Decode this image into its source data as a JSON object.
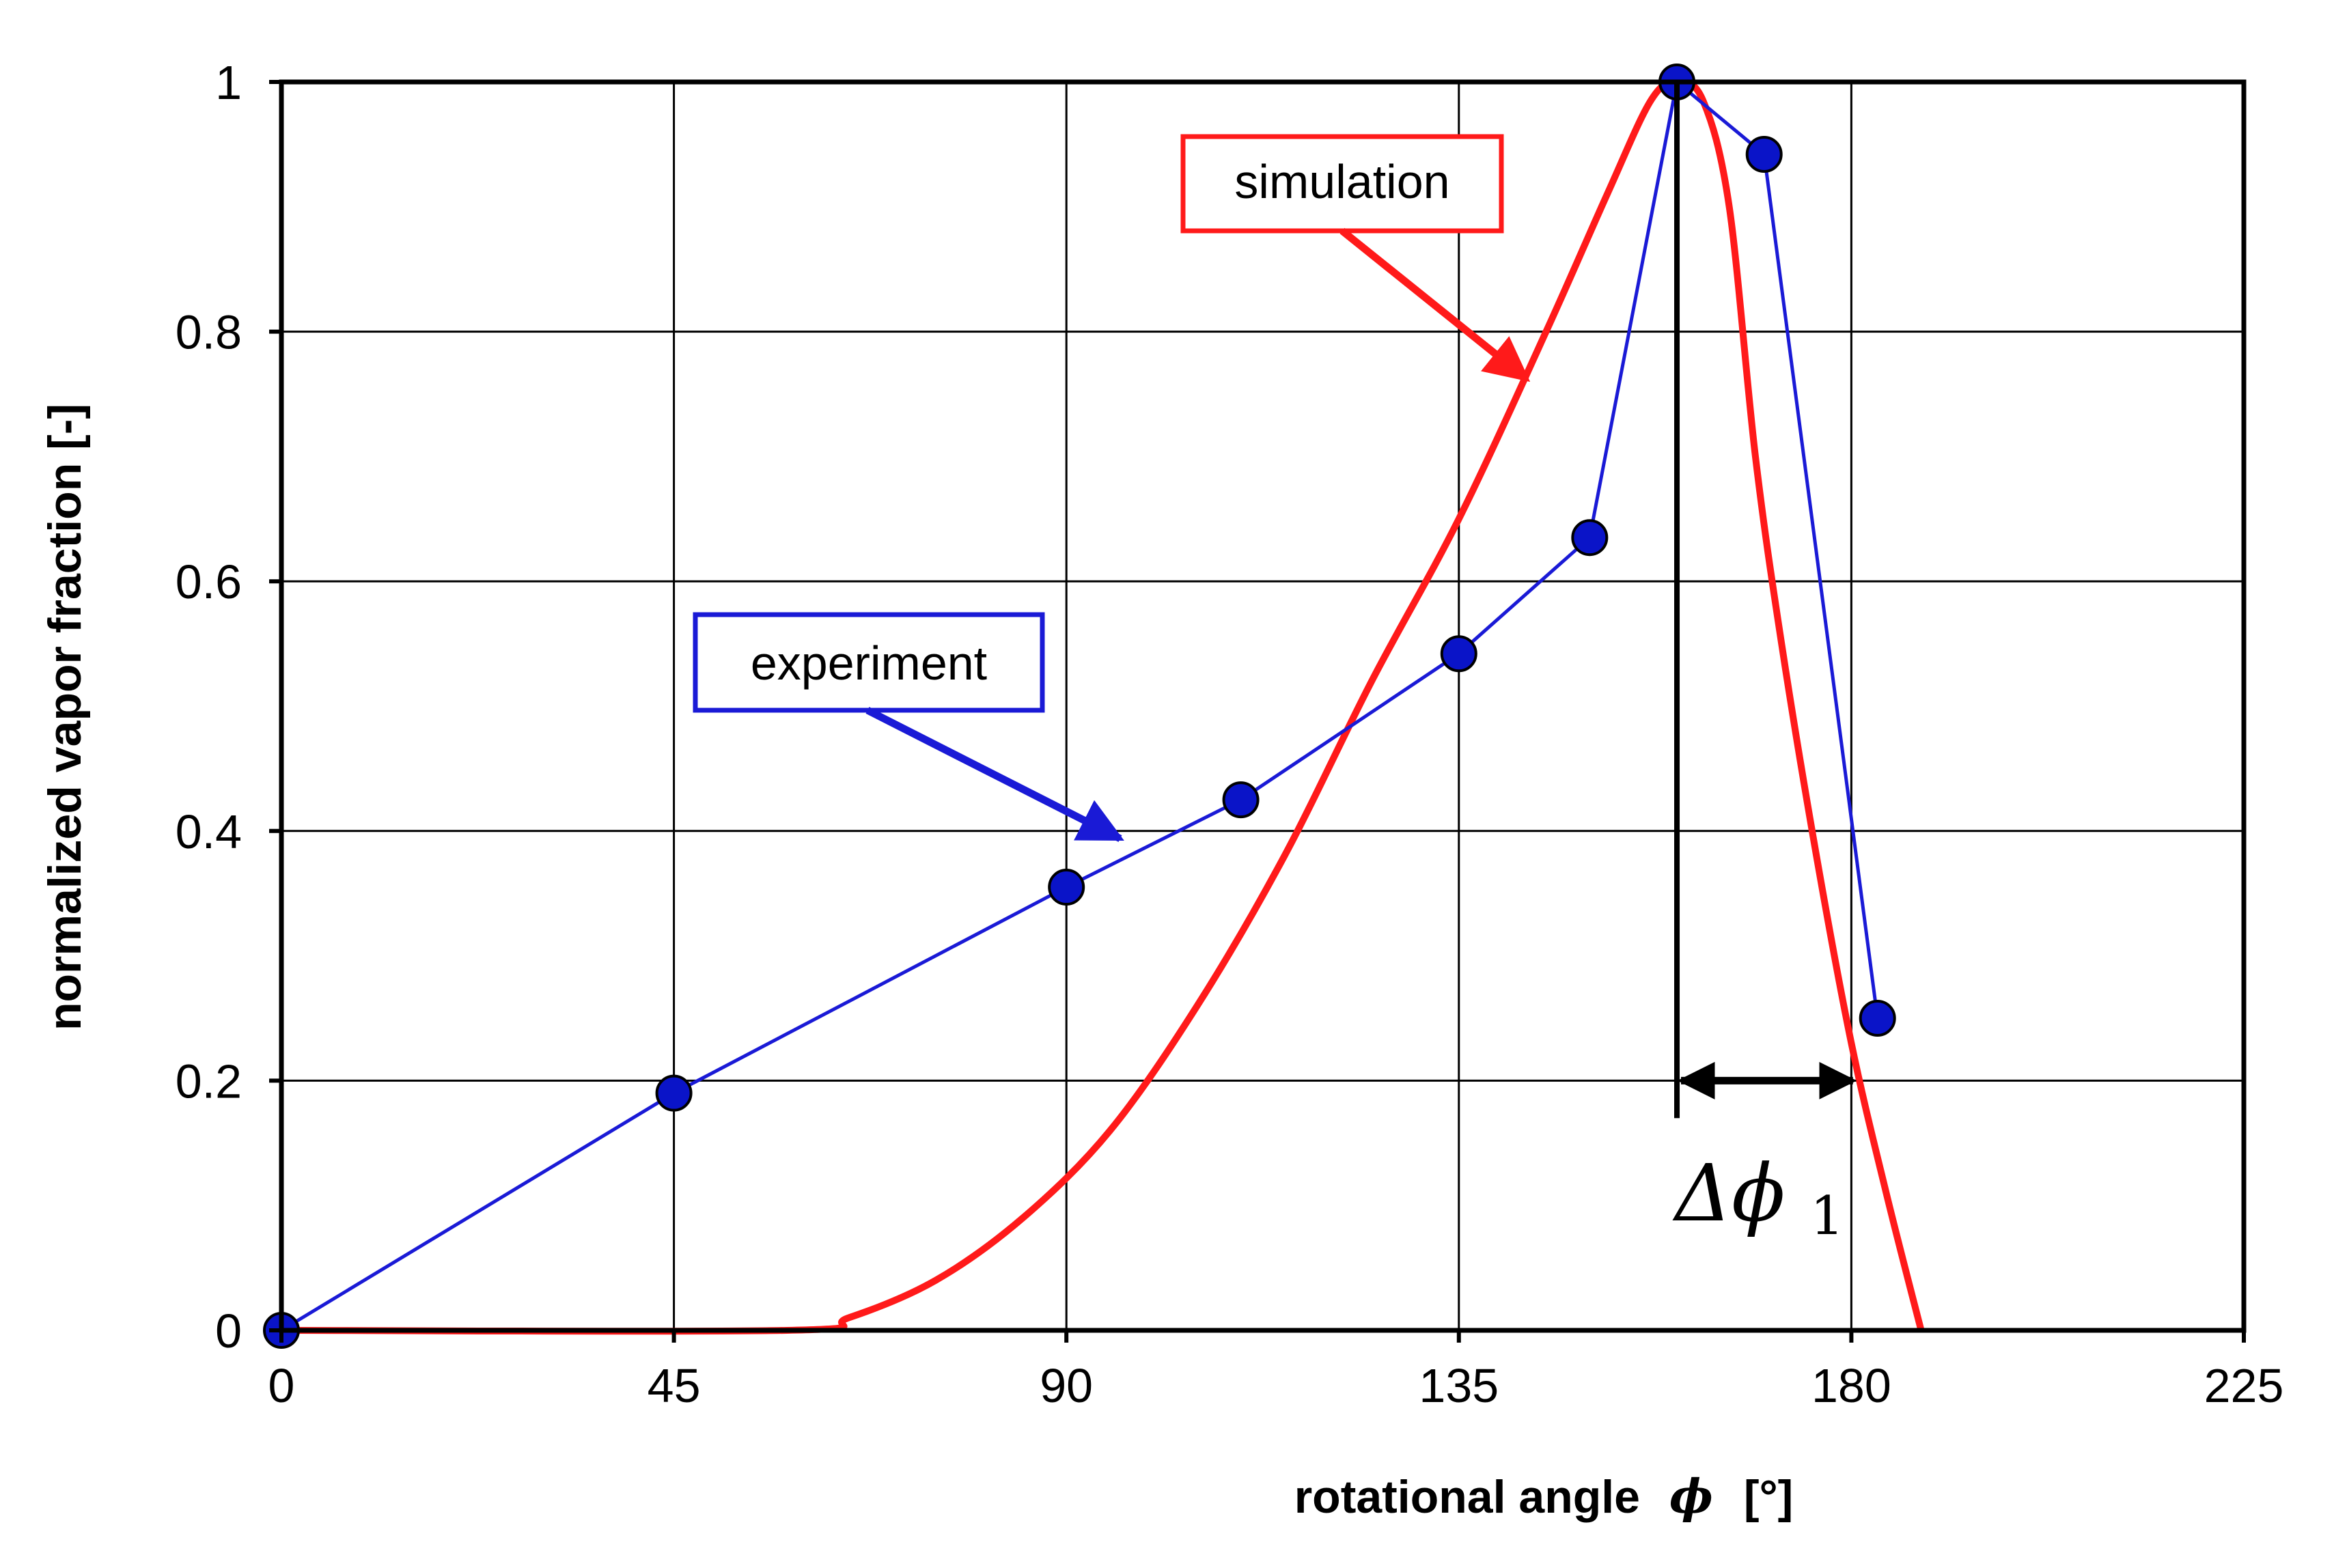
{
  "chart_data": {
    "type": "line",
    "title": "",
    "xlabel": "rotational angle",
    "xlabel_symbol": "ϕ",
    "xlabel_unit": "[°]",
    "ylabel": "normalized vapor fraction [-]",
    "xlim": [
      0,
      225
    ],
    "ylim": [
      0,
      1
    ],
    "xticks": [
      "0",
      "45",
      "90",
      "135",
      "180",
      "225"
    ],
    "xtick_values": [
      0,
      45,
      90,
      135,
      180,
      225
    ],
    "yticks": [
      "0",
      "0.2",
      "0.4",
      "0.6",
      "0.8",
      "1"
    ],
    "ytick_values": [
      0,
      0.2,
      0.4,
      0.6,
      0.8,
      1
    ],
    "grid": true,
    "series": [
      {
        "name": "experiment",
        "color": "#1a1ad6",
        "marker_color": "#0a14c8",
        "markers": true,
        "points": [
          [
            0,
            0
          ],
          [
            45,
            0.19
          ],
          [
            90,
            0.355
          ],
          [
            110,
            0.425
          ],
          [
            135,
            0.542
          ],
          [
            150,
            0.635
          ],
          [
            160,
            1.0
          ],
          [
            170,
            0.942
          ],
          [
            183,
            0.25
          ]
        ]
      },
      {
        "name": "simulation",
        "color": "#ff1a1a",
        "markers": false,
        "points": [
          [
            0,
            0
          ],
          [
            58,
            0
          ],
          [
            65,
            0.01
          ],
          [
            75,
            0.04
          ],
          [
            85,
            0.09
          ],
          [
            95,
            0.16
          ],
          [
            105,
            0.26
          ],
          [
            115,
            0.38
          ],
          [
            125,
            0.52
          ],
          [
            135,
            0.65
          ],
          [
            145,
            0.8
          ],
          [
            152,
            0.91
          ],
          [
            157,
            0.985
          ],
          [
            160,
            1.0
          ],
          [
            163,
            0.985
          ],
          [
            166,
            0.9
          ],
          [
            169,
            0.7
          ],
          [
            172,
            0.55
          ],
          [
            176,
            0.38
          ],
          [
            180,
            0.23
          ],
          [
            184,
            0.11
          ],
          [
            188,
            0.0
          ]
        ]
      }
    ],
    "annotations": {
      "experiment_label": "experiment",
      "simulation_label": "simulation",
      "delta_symbol": "Δϕ",
      "delta_subscript": "1",
      "delta_start_deg": 160,
      "delta_end_deg": 180.5,
      "peak_marker_deg": 160
    }
  }
}
